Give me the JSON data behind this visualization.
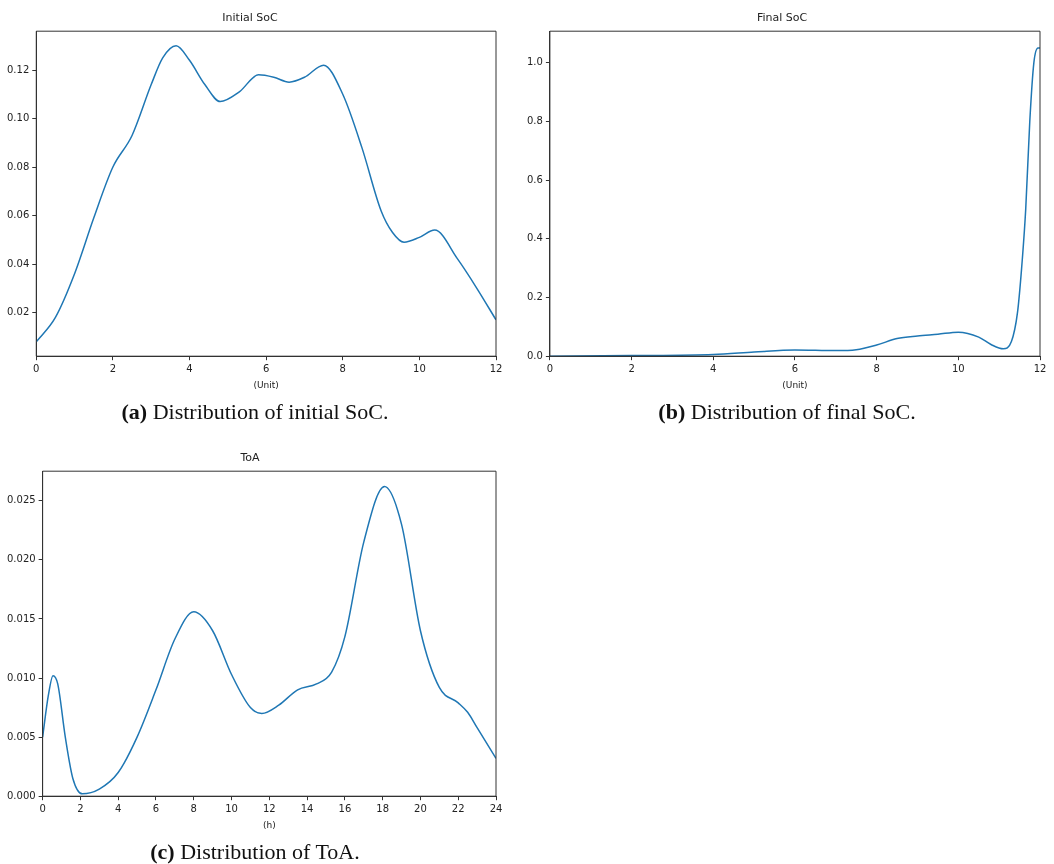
{
  "chart_data": [
    {
      "type": "line",
      "title": "Initial SoC",
      "xlabel": "(Unit)",
      "annotations": [
        "(a) Distribution of initial SoC."
      ],
      "grid": false,
      "legend": false,
      "marker": "none",
      "xlim": [
        0,
        12
      ],
      "xticks": [
        0,
        2,
        4,
        6,
        8,
        10,
        12
      ],
      "ylim": [
        0.002,
        0.136
      ],
      "yticks": [
        0.02,
        0.04,
        0.06,
        0.08,
        {
          "value": 0.1,
          "label": "0.10"
        },
        0.12
      ],
      "series": [
        {
          "color": "#1f77b4",
          "x": [
            0,
            0.5,
            1,
            1.5,
            2,
            2.5,
            3,
            3.3,
            3.65,
            4,
            4.4,
            4.8,
            5.3,
            5.8,
            6.2,
            6.6,
            7,
            7.5,
            8,
            8.5,
            9,
            9.3,
            9.6,
            10,
            10.4,
            11,
            11.5,
            12
          ],
          "values": [
            0.0079,
            0.018,
            0.036,
            0.059,
            0.08,
            0.093,
            0.114,
            0.125,
            0.13,
            0.124,
            0.114,
            0.107,
            0.111,
            0.118,
            0.117,
            0.115,
            0.117,
            0.122,
            0.11,
            0.088,
            0.062,
            0.053,
            0.049,
            0.051,
            0.054,
            0.042,
            0.03,
            0.017
          ]
        }
      ]
    },
    {
      "type": "line",
      "title": "Final SoC",
      "xlabel": "(Unit)",
      "annotations": [
        "(b) Distribution of final SoC."
      ],
      "grid": false,
      "legend": false,
      "marker": "none",
      "xlim": [
        0,
        12
      ],
      "xticks": [
        0,
        2,
        4,
        6,
        8,
        10,
        12
      ],
      "ylim": [
        0,
        1.107
      ],
      "yticks": [
        {
          "value": 0,
          "label": "0.0"
        },
        {
          "value": 0.2,
          "label": "0.2"
        },
        {
          "value": 0.4,
          "label": "0.4"
        },
        {
          "value": 0.6,
          "label": "0.6"
        },
        {
          "value": 0.8,
          "label": "0.8"
        },
        {
          "value": 1,
          "label": "1.0"
        }
      ],
      "series": [
        {
          "color": "#1f77b4",
          "x": [
            0,
            2,
            4,
            5,
            6,
            7,
            7.5,
            8,
            8.5,
            9,
            9.5,
            10,
            10.5,
            10.8,
            11.1,
            11.3,
            11.45,
            11.55,
            11.65,
            11.75,
            11.85,
            11.95,
            12
          ],
          "values": [
            0,
            0.002,
            0.006,
            0.014,
            0.021,
            0.019,
            0.022,
            0.038,
            0.06,
            0.069,
            0.075,
            0.082,
            0.065,
            0.04,
            0.025,
            0.05,
            0.15,
            0.3,
            0.5,
            0.8,
            1.0,
            1.05,
            1.05
          ]
        }
      ]
    },
    {
      "type": "line",
      "title": "ToA",
      "xlabel": "(h)",
      "annotations": [
        "(c) Distribution of ToA."
      ],
      "grid": false,
      "legend": false,
      "marker": "none",
      "xlim": [
        0,
        24
      ],
      "xticks": [
        0,
        2,
        4,
        6,
        8,
        10,
        12,
        14,
        16,
        18,
        20,
        22,
        24
      ],
      "ylim": [
        0,
        0.0275
      ],
      "yticks": [
        {
          "value": 0,
          "label": "0.000"
        },
        {
          "value": 0.005,
          "label": "0.005"
        },
        {
          "value": 0.01,
          "label": "0.010"
        },
        {
          "value": 0.015,
          "label": "0.015"
        },
        {
          "value": 0.02,
          "label": "0.020"
        },
        {
          "value": 0.025,
          "label": "0.025"
        }
      ],
      "series": [
        {
          "color": "#1f77b4",
          "x": [
            0,
            0.3,
            0.55,
            0.8,
            1.2,
            1.6,
            2.1,
            3,
            4,
            5,
            6,
            7,
            8,
            9,
            10,
            11,
            11.6,
            12.5,
            13.5,
            14.5,
            15.3,
            16,
            17,
            18.1,
            19,
            20,
            21,
            22,
            22.5,
            23,
            24
          ],
          "values": [
            0.005,
            0.0085,
            0.0102,
            0.0095,
            0.005,
            0.0015,
            0.0002,
            0.0006,
            0.002,
            0.005,
            0.009,
            0.0133,
            0.0156,
            0.014,
            0.0103,
            0.0075,
            0.007,
            0.0077,
            0.009,
            0.0095,
            0.0105,
            0.0135,
            0.0215,
            0.0262,
            0.023,
            0.014,
            0.0092,
            0.0079,
            0.0071,
            0.0058,
            0.0032
          ]
        }
      ]
    }
  ]
}
